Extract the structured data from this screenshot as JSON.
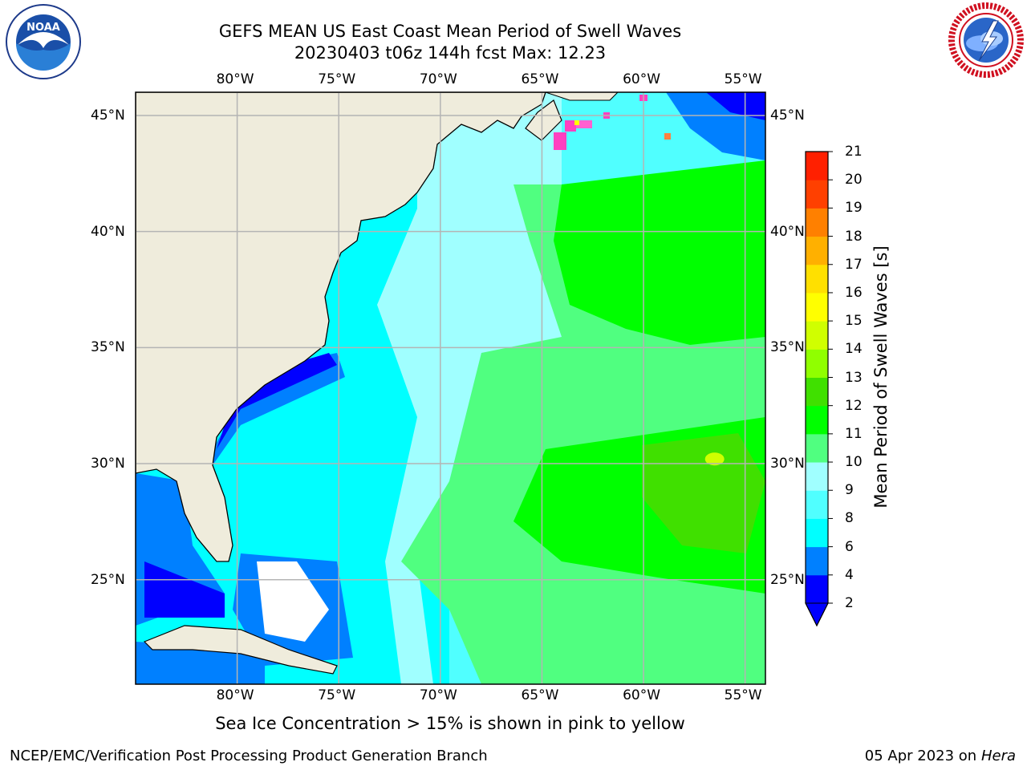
{
  "header": {
    "title_line1": "GEFS MEAN US East Coast Mean Period of Swell Waves",
    "title_line2": "20230403 t06z 144h fcst   Max: 12.23"
  },
  "logos": {
    "left": {
      "name": "noaa-logo",
      "text": "NOAA",
      "ring_text": "NATIONAL OCEANIC AND ATMOSPHERIC ADMINISTRATION · U.S. DEPARTMENT OF COMMERCE"
    },
    "right": {
      "name": "nws-logo",
      "ring_text": "NATIONAL WEATHER SERVICE"
    }
  },
  "map": {
    "lon_range": [
      -85,
      -54
    ],
    "lat_range": [
      20.5,
      46
    ],
    "lon_ticks": [
      -80,
      -75,
      -70,
      -65,
      -60,
      -55
    ],
    "lat_ticks": [
      25,
      30,
      35,
      40,
      45
    ],
    "lon_labels": [
      "80°W",
      "75°W",
      "70°W",
      "65°W",
      "60°W",
      "55°W"
    ],
    "lat_labels": [
      "25°N",
      "30°N",
      "35°N",
      "40°N",
      "45°N"
    ],
    "land_color": "#efecdc",
    "grid_color": "#b4b4b4",
    "max_marker": {
      "lon": -56.5,
      "lat": 30.2,
      "value": 12.23
    }
  },
  "colorbar": {
    "title": "Mean Period of Swell Waves [s]",
    "levels": [
      "2",
      "4",
      "6",
      "8",
      "9",
      "10",
      "11",
      "12",
      "13",
      "14",
      "15",
      "16",
      "17",
      "18",
      "19",
      "20",
      "21"
    ],
    "colors": [
      "#0000ff",
      "#0080ff",
      "#00ffff",
      "#50ffff",
      "#a0ffff",
      "#50ff80",
      "#00ff00",
      "#40e000",
      "#90ff00",
      "#d0ff00",
      "#ffff00",
      "#ffe000",
      "#ffb000",
      "#ff8000",
      "#ff4000",
      "#ff2000",
      "#ff0000"
    ],
    "extend_low_color": "#0000ff"
  },
  "footer": {
    "note": "Sea Ice Concentration > 15% is shown in pink to yellow",
    "credit": "NCEP/EMC/Verification Post Processing Product Generation Branch",
    "date_prefix": "05 Apr 2023 on ",
    "date_host": "Hera"
  }
}
